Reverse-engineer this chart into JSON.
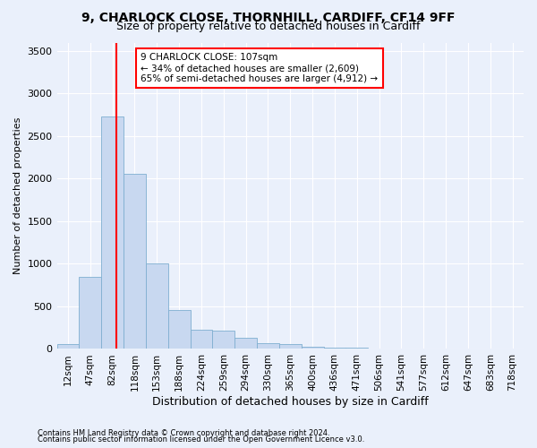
{
  "title1": "9, CHARLOCK CLOSE, THORNHILL, CARDIFF, CF14 9FF",
  "title2": "Size of property relative to detached houses in Cardiff",
  "xlabel": "Distribution of detached houses by size in Cardiff",
  "ylabel": "Number of detached properties",
  "footnote1": "Contains HM Land Registry data © Crown copyright and database right 2024.",
  "footnote2": "Contains public sector information licensed under the Open Government Licence v3.0.",
  "bar_labels": [
    "12sqm",
    "47sqm",
    "82sqm",
    "118sqm",
    "153sqm",
    "188sqm",
    "224sqm",
    "259sqm",
    "294sqm",
    "330sqm",
    "365sqm",
    "400sqm",
    "436sqm",
    "471sqm",
    "506sqm",
    "541sqm",
    "577sqm",
    "612sqm",
    "647sqm",
    "683sqm",
    "718sqm"
  ],
  "bar_values": [
    60,
    850,
    2730,
    2060,
    1010,
    455,
    225,
    220,
    130,
    65,
    55,
    30,
    15,
    15,
    5,
    5,
    0,
    0,
    0,
    0,
    0
  ],
  "bar_color": "#c8d8f0",
  "bar_edgecolor": "#7fafd0",
  "vline_x": 2.67,
  "vline_color": "red",
  "annotation_text": "9 CHARLOCK CLOSE: 107sqm\n← 34% of detached houses are smaller (2,609)\n65% of semi-detached houses are larger (4,912) →",
  "annotation_box_color": "white",
  "annotation_box_edgecolor": "red",
  "ylim": [
    0,
    3600
  ],
  "yticks": [
    0,
    500,
    1000,
    1500,
    2000,
    2500,
    3000,
    3500
  ],
  "bg_color": "#eaf0fb",
  "plot_bg_color": "#eaf0fb",
  "grid_color": "white",
  "title1_fontsize": 10,
  "title2_fontsize": 9,
  "xlabel_fontsize": 9,
  "ylabel_fontsize": 8,
  "annotation_fontsize": 7.5,
  "tick_fontsize": 7.5,
  "ytick_fontsize": 8
}
